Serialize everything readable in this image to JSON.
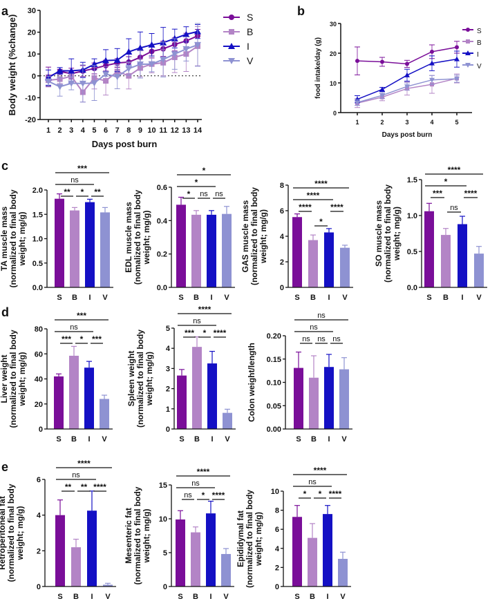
{
  "panel_letters": [
    "a",
    "b",
    "c",
    "d",
    "e"
  ],
  "groups": [
    "S",
    "B",
    "I",
    "V"
  ],
  "colors": {
    "S": "#7a0e99",
    "B": "#b384c6",
    "I": "#1410c4",
    "V": "#8e92d2"
  },
  "chart_data": [
    {
      "id": "a",
      "type": "line",
      "xlabel": "Days post burn",
      "ylabel": "Body weight (%change)",
      "x": [
        1,
        2,
        3,
        4,
        5,
        6,
        7,
        8,
        9,
        10,
        11,
        12,
        13,
        14
      ],
      "ylim": [
        -20,
        30
      ],
      "yticks": [
        "-20",
        "-10",
        "0",
        "10",
        "20",
        "30"
      ],
      "reference_line": 0,
      "legend": "right",
      "series": [
        {
          "name": "S",
          "marker": "circle",
          "values": [
            -0.5,
            2,
            1,
            2.2,
            3.4,
            4.7,
            5.9,
            6.3,
            8.5,
            11.2,
            12.4,
            14.4,
            16,
            18.3
          ],
          "errors": [
            4.5,
            1,
            2.5,
            2.5,
            2.5,
            2.5,
            2,
            2.5,
            3,
            3,
            3.5,
            3,
            3.5,
            3
          ]
        },
        {
          "name": "B",
          "marker": "square",
          "values": [
            -2,
            -1.5,
            -0.2,
            -7.5,
            -1,
            -2.3,
            2,
            0,
            3.6,
            5.4,
            6,
            8.5,
            10,
            13.6
          ],
          "errors": [
            2.5,
            2,
            2.5,
            4.5,
            5,
            6.5,
            2.5,
            6,
            4,
            4,
            6,
            7,
            8,
            9
          ]
        },
        {
          "name": "I",
          "marker": "triangle-up",
          "values": [
            -0.8,
            2.3,
            2.3,
            2.7,
            5.3,
            7,
            7.2,
            11,
            12.8,
            14.2,
            15.2,
            17.1,
            19,
            20.3
          ],
          "errors": [
            3.5,
            1.5,
            5.5,
            3.5,
            2.5,
            5,
            5.3,
            6,
            7.3,
            5.2,
            7,
            4.3,
            3.5,
            3.2
          ]
        },
        {
          "name": "V",
          "marker": "triangle-down",
          "values": [
            -2.5,
            -5,
            -3.4,
            -3.5,
            -3.3,
            0.8,
            -0.4,
            3.3,
            5.3,
            5.4,
            7.5,
            10,
            12.3,
            14.2
          ],
          "errors": [
            2.3,
            4.3,
            3,
            8.5,
            8,
            1,
            5.5,
            3,
            6.3,
            3.5,
            8,
            7,
            5.5,
            9.8
          ]
        }
      ]
    },
    {
      "id": "b",
      "type": "line",
      "xlabel": "Days post burn",
      "ylabel": "food intake/day (g)",
      "x": [
        1,
        2,
        3,
        4,
        5
      ],
      "ylim": [
        0,
        30
      ],
      "yticks": [
        "0",
        "10",
        "20",
        "30"
      ],
      "legend": "right",
      "series": [
        {
          "name": "S",
          "marker": "circle",
          "values": [
            17.4,
            17.1,
            16.4,
            20.5,
            22
          ],
          "errors": [
            4.7,
            1.5,
            1.2,
            2.3,
            2
          ]
        },
        {
          "name": "B",
          "marker": "square",
          "values": [
            3.2,
            5.2,
            8.1,
            9.5,
            11.5
          ],
          "errors": [
            1.5,
            1.2,
            2.2,
            3,
            1.5
          ]
        },
        {
          "name": "I",
          "marker": "triangle-up",
          "values": [
            4.5,
            7.8,
            12.6,
            16.6,
            18
          ],
          "errors": [
            1.2,
            0.7,
            2,
            2.5,
            2.7
          ]
        },
        {
          "name": "V",
          "marker": "triangle-down",
          "values": [
            3.4,
            5.8,
            8.8,
            11,
            11.4
          ],
          "errors": [
            1,
            1,
            1.2,
            1.5,
            1.2
          ]
        }
      ]
    },
    {
      "id": "c-ta",
      "type": "bar",
      "categories": [
        "S",
        "B",
        "I",
        "V"
      ],
      "ylabel": [
        "TA muscle mass",
        "(normalized to final body",
        "weight; mg/g)"
      ],
      "ylim": [
        0,
        2
      ],
      "yticks": [
        "0.0",
        "0.5",
        "1.0",
        "1.5",
        "2.0"
      ],
      "values": [
        1.82,
        1.58,
        1.75,
        1.54
      ],
      "errors": [
        0.1,
        0.06,
        0.06,
        0.1
      ],
      "significance": [
        {
          "pair": [
            "S",
            "B"
          ],
          "label": "**",
          "level": 0
        },
        {
          "pair": [
            "B",
            "I"
          ],
          "label": "*",
          "level": 0
        },
        {
          "pair": [
            "I",
            "V"
          ],
          "label": "**",
          "level": 0
        },
        {
          "pair": [
            "S",
            "I"
          ],
          "label": "ns",
          "level": 1
        },
        {
          "pair": [
            "S",
            "V"
          ],
          "label": "***",
          "level": 2
        }
      ]
    },
    {
      "id": "c-edl",
      "type": "bar",
      "categories": [
        "S",
        "B",
        "I",
        "V"
      ],
      "ylabel": [
        "EDL muscle mass",
        "(nomalized to final body",
        "weight; mg/g)"
      ],
      "ylim": [
        0,
        0.6
      ],
      "yticks": [
        "0.0",
        "0.2",
        "0.4",
        "0.6"
      ],
      "values": [
        0.495,
        0.435,
        0.435,
        0.44
      ],
      "errors": [
        0.045,
        0.025,
        0.025,
        0.045
      ],
      "significance": [
        {
          "pair": [
            "S",
            "B"
          ],
          "label": "*",
          "level": 0
        },
        {
          "pair": [
            "B",
            "I"
          ],
          "label": "ns",
          "level": 0
        },
        {
          "pair": [
            "I",
            "V"
          ],
          "label": "ns",
          "level": 0
        },
        {
          "pair": [
            "S",
            "I"
          ],
          "label": "*",
          "level": 1
        },
        {
          "pair": [
            "S",
            "V"
          ],
          "label": "*",
          "level": 2
        }
      ]
    },
    {
      "id": "c-gas",
      "type": "bar",
      "categories": [
        "S",
        "B",
        "I",
        "V"
      ],
      "ylabel": [
        "GAS muscle mass",
        "(normalized to final body",
        "weight; mg/g)"
      ],
      "ylim": [
        0,
        8
      ],
      "yticks": [
        "0",
        "2",
        "4",
        "6",
        "8"
      ],
      "values": [
        5.5,
        3.7,
        4.3,
        3.1
      ],
      "errors": [
        0.25,
        0.4,
        0.3,
        0.2
      ],
      "significance": [
        {
          "pair": [
            "S",
            "B"
          ],
          "label": "****",
          "level": 0
        },
        {
          "pair": [
            "B",
            "I"
          ],
          "label": "*",
          "level": -1
        },
        {
          "pair": [
            "I",
            "V"
          ],
          "label": "****",
          "level": 0
        },
        {
          "pair": [
            "S",
            "I"
          ],
          "label": "****",
          "level": 1
        },
        {
          "pair": [
            "S",
            "V"
          ],
          "label": "****",
          "level": 2
        }
      ]
    },
    {
      "id": "c-so",
      "type": "bar",
      "categories": [
        "S",
        "B",
        "I",
        "V"
      ],
      "ylabel": [
        "SO muscle mass",
        "(normalized to final body",
        "weight; mg/g)"
      ],
      "ylim": [
        0,
        1.5
      ],
      "yticks": [
        "0.0",
        "0.5",
        "1.0",
        "1.5"
      ],
      "values": [
        1.06,
        0.73,
        0.88,
        0.47
      ],
      "errors": [
        0.11,
        0.09,
        0.11,
        0.1
      ],
      "significance": [
        {
          "pair": [
            "S",
            "B"
          ],
          "label": "***",
          "level": 0
        },
        {
          "pair": [
            "B",
            "I"
          ],
          "label": "ns",
          "level": -1
        },
        {
          "pair": [
            "I",
            "V"
          ],
          "label": "****",
          "level": 0
        },
        {
          "pair": [
            "S",
            "I"
          ],
          "label": "*",
          "level": 1
        },
        {
          "pair": [
            "S",
            "V"
          ],
          "label": "****",
          "level": 2
        }
      ]
    },
    {
      "id": "d-liver",
      "type": "bar",
      "categories": [
        "S",
        "B",
        "I",
        "V"
      ],
      "ylabel": [
        "Liver weight",
        "(normalized to final body",
        "weight; mg/g)"
      ],
      "ylim": [
        0,
        80
      ],
      "yticks": [
        "0",
        "20",
        "40",
        "60",
        "80"
      ],
      "values": [
        42,
        58.5,
        49,
        24
      ],
      "errors": [
        2,
        7.5,
        5,
        3
      ],
      "significance": [
        {
          "pair": [
            "S",
            "B"
          ],
          "label": "***",
          "level": 0
        },
        {
          "pair": [
            "B",
            "I"
          ],
          "label": "*",
          "level": 0
        },
        {
          "pair": [
            "I",
            "V"
          ],
          "label": "***",
          "level": 0
        },
        {
          "pair": [
            "S",
            "I"
          ],
          "label": "ns",
          "level": 1
        },
        {
          "pair": [
            "S",
            "V"
          ],
          "label": "***",
          "level": 2
        }
      ]
    },
    {
      "id": "d-spleen",
      "type": "bar",
      "categories": [
        "S",
        "B",
        "I",
        "V"
      ],
      "ylabel": [
        "Spleen weight",
        "(normalized to final body",
        "weight; mg/g)"
      ],
      "ylim": [
        0,
        5
      ],
      "yticks": [
        "0",
        "1",
        "2",
        "3",
        "4",
        "5"
      ],
      "values": [
        2.65,
        4.07,
        3.25,
        0.8
      ],
      "errors": [
        0.3,
        0.5,
        0.6,
        0.18
      ],
      "significance": [
        {
          "pair": [
            "S",
            "B"
          ],
          "label": "***",
          "level": 0
        },
        {
          "pair": [
            "B",
            "I"
          ],
          "label": "*",
          "level": 0
        },
        {
          "pair": [
            "I",
            "V"
          ],
          "label": "****",
          "level": 0
        },
        {
          "pair": [
            "S",
            "I"
          ],
          "label": "ns",
          "level": 1
        },
        {
          "pair": [
            "S",
            "V"
          ],
          "label": "****",
          "level": 2
        }
      ]
    },
    {
      "id": "d-colon",
      "type": "bar",
      "categories": [
        "S",
        "B",
        "I",
        "V"
      ],
      "ylabel": [
        "Colon weight/length"
      ],
      "ylim": [
        0,
        0.2
      ],
      "yticks": [
        "0.00",
        "0.05",
        "0.10",
        "0.15",
        "0.20"
      ],
      "values": [
        0.131,
        0.11,
        0.133,
        0.128
      ],
      "errors": [
        0.034,
        0.047,
        0.027,
        0.025
      ],
      "significance": [
        {
          "pair": [
            "S",
            "B"
          ],
          "label": "ns",
          "level": 0
        },
        {
          "pair": [
            "B",
            "I"
          ],
          "label": "ns",
          "level": 0
        },
        {
          "pair": [
            "I",
            "V"
          ],
          "label": "ns",
          "level": 0
        },
        {
          "pair": [
            "S",
            "I"
          ],
          "label": "ns",
          "level": 1
        },
        {
          "pair": [
            "S",
            "V"
          ],
          "label": "ns",
          "level": 2
        }
      ]
    },
    {
      "id": "e-retro",
      "type": "bar",
      "categories": [
        "S",
        "B",
        "I",
        "V"
      ],
      "ylabel": [
        "Retroperitoneal fat",
        "(normalized to final body",
        "weight; mg/g)"
      ],
      "ylim": [
        0,
        6
      ],
      "yticks": [
        "0",
        "2",
        "4",
        "6"
      ],
      "values": [
        4.0,
        2.2,
        4.25,
        0.1
      ],
      "errors": [
        0.85,
        0.45,
        1.1,
        0.08
      ],
      "significance": [
        {
          "pair": [
            "S",
            "B"
          ],
          "label": "**",
          "level": 0
        },
        {
          "pair": [
            "B",
            "I"
          ],
          "label": "**",
          "level": 0
        },
        {
          "pair": [
            "I",
            "V"
          ],
          "label": "****",
          "level": 0
        },
        {
          "pair": [
            "S",
            "I"
          ],
          "label": "ns",
          "level": 1
        },
        {
          "pair": [
            "S",
            "V"
          ],
          "label": "****",
          "level": 2
        }
      ]
    },
    {
      "id": "e-mesenteric",
      "type": "bar",
      "categories": [
        "S",
        "B",
        "I",
        "V"
      ],
      "ylabel": [
        "Mesenteric fat",
        "(normalized to final body",
        "weight; mg/g)"
      ],
      "ylim": [
        0,
        15
      ],
      "yticks": [
        "0",
        "5",
        "10",
        "15"
      ],
      "values": [
        9.9,
        8,
        10.8,
        4.8
      ],
      "errors": [
        1.3,
        0.8,
        1.8,
        0.8
      ],
      "significance": [
        {
          "pair": [
            "S",
            "B"
          ],
          "label": "ns",
          "level": 0
        },
        {
          "pair": [
            "B",
            "I"
          ],
          "label": "*",
          "level": 0
        },
        {
          "pair": [
            "I",
            "V"
          ],
          "label": "****",
          "level": 0
        },
        {
          "pair": [
            "S",
            "I"
          ],
          "label": "ns",
          "level": 1
        },
        {
          "pair": [
            "S",
            "V"
          ],
          "label": "****",
          "level": 2
        }
      ]
    },
    {
      "id": "e-epididymal",
      "type": "bar",
      "categories": [
        "S",
        "B",
        "I",
        "V"
      ],
      "ylabel": [
        "Epididymal fat",
        "(normalized to final body",
        "weight; mg/g)"
      ],
      "ylim": [
        0,
        10
      ],
      "yticks": [
        "0",
        "2",
        "4",
        "6",
        "8",
        "10"
      ],
      "values": [
        7.3,
        5.1,
        7.6,
        2.9
      ],
      "errors": [
        1.2,
        1.5,
        0.9,
        0.7
      ],
      "significance": [
        {
          "pair": [
            "S",
            "B"
          ],
          "label": "*",
          "level": 0
        },
        {
          "pair": [
            "B",
            "I"
          ],
          "label": "*",
          "level": 0
        },
        {
          "pair": [
            "I",
            "V"
          ],
          "label": "****",
          "level": 0
        },
        {
          "pair": [
            "S",
            "I"
          ],
          "label": "ns",
          "level": 1
        },
        {
          "pair": [
            "S",
            "V"
          ],
          "label": "****",
          "level": 2
        }
      ]
    }
  ]
}
